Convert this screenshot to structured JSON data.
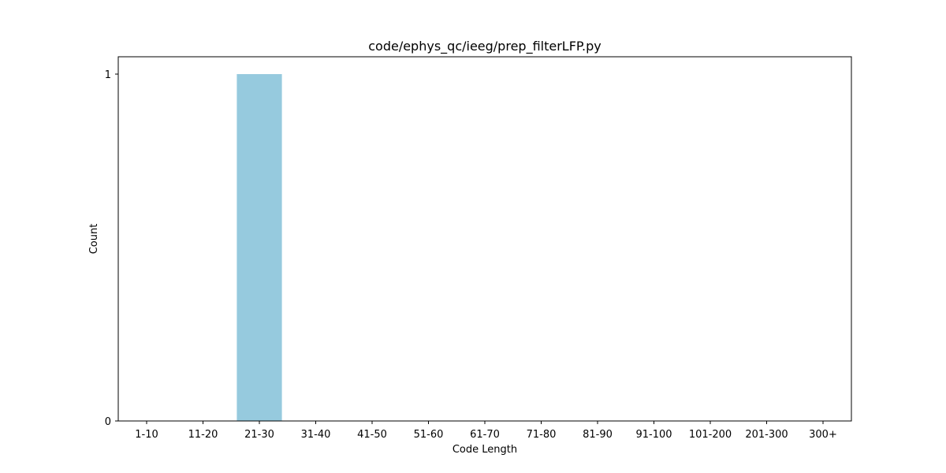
{
  "chart_data": {
    "type": "bar",
    "title": "code/ephys_qc/ieeg/prep_filterLFP.py",
    "xlabel": "Code Length",
    "ylabel": "Count",
    "categories": [
      "1-10",
      "11-20",
      "21-30",
      "31-40",
      "41-50",
      "51-60",
      "61-70",
      "71-80",
      "81-90",
      "91-100",
      "101-200",
      "201-300",
      "300+"
    ],
    "values": [
      0,
      0,
      1,
      0,
      0,
      0,
      0,
      0,
      0,
      0,
      0,
      0,
      0
    ],
    "ylim": [
      0,
      1.05
    ],
    "yticks": [
      0,
      1
    ],
    "bar_color": "#96cade",
    "grid": false,
    "legend": "none"
  }
}
